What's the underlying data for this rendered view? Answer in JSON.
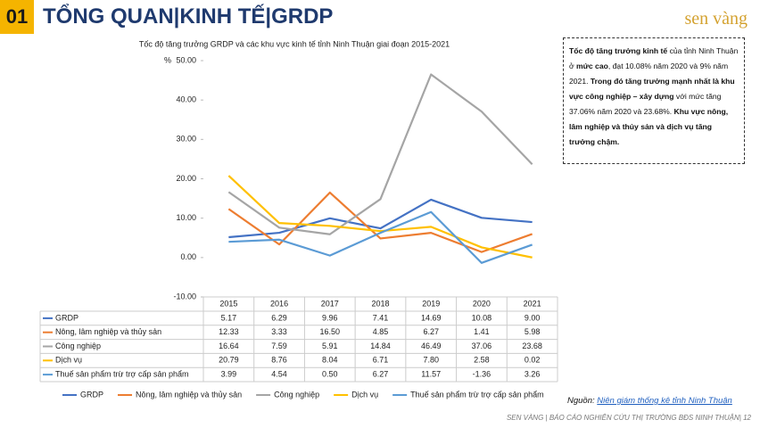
{
  "header": {
    "number": "01",
    "title": "TỔNG QUAN|KINH TẾ|GRDP",
    "logo": "sen vàng"
  },
  "chart_data": {
    "type": "line",
    "title": "Tốc độ tăng trưởng GRDP và các khu vực kinh tế tỉnh Ninh Thuận giai đoạn 2015-2021",
    "y_label": "%",
    "categories": [
      "2015",
      "2016",
      "2017",
      "2018",
      "2019",
      "2020",
      "2021"
    ],
    "ylim": [
      -10,
      50
    ],
    "yticks": [
      {
        "value": -10,
        "label": "-10.00"
      },
      {
        "value": 0,
        "label": "0.00"
      },
      {
        "value": 10,
        "label": "10.00"
      },
      {
        "value": 20,
        "label": "20.00"
      },
      {
        "value": 30,
        "label": "30.00"
      },
      {
        "value": 40,
        "label": "40.00"
      },
      {
        "value": 50,
        "label": "50.00"
      }
    ],
    "grid": false,
    "series": [
      {
        "name": "GRDP",
        "color": "#4472c4",
        "values": [
          5.17,
          6.29,
          9.96,
          7.41,
          14.69,
          10.08,
          9
        ],
        "value_labels": [
          "5.17",
          "6.29",
          "9.96",
          "7.41",
          "14.69",
          "10.08",
          "9.00"
        ]
      },
      {
        "name": "Nông, lâm nghiệp và thủy sản",
        "color": "#ed7d31",
        "values": [
          12.33,
          3.33,
          16.5,
          4.85,
          6.27,
          1.41,
          5.98
        ],
        "value_labels": [
          "12.33",
          "3.33",
          "16.50",
          "4.85",
          "6.27",
          "1.41",
          "5.98"
        ]
      },
      {
        "name": "Công nghiệp",
        "color": "#a5a5a5",
        "values": [
          16.64,
          7.59,
          5.91,
          14.84,
          46.49,
          37.06,
          23.68
        ],
        "value_labels": [
          "16.64",
          "7.59",
          "5.91",
          "14.84",
          "46.49",
          "37.06",
          "23.68"
        ]
      },
      {
        "name": "Dịch vụ",
        "color": "#ffc000",
        "values": [
          20.79,
          8.76,
          8.04,
          6.71,
          7.8,
          2.58,
          0.02
        ],
        "value_labels": [
          "20.79",
          "8.76",
          "8.04",
          "6.71",
          "7.80",
          "2.58",
          "0.02"
        ]
      },
      {
        "name": "Thuế sản phẩm trừ trợ cấp sản phẩm",
        "color": "#5b9bd5",
        "values": [
          3.99,
          4.54,
          0.5,
          6.27,
          11.57,
          -1.36,
          3.26
        ],
        "value_labels": [
          "3.99",
          "4.54",
          "0.50",
          "6.27",
          "11.57",
          "-1.36",
          "3.26"
        ]
      }
    ]
  },
  "note": {
    "segments": [
      "Tốc độ tăng trưởng kinh tế",
      " của tỉnh Ninh Thuận ở ",
      "mức cao",
      ", đạt 10.08% năm 2020 và 9% năm 2021. ",
      "Trong đó tăng trưởng mạnh nhất là khu vực công nghiệp – xây dựng",
      " với mức tăng 37.06% năm 2020 và 23.68%. ",
      "Khu vực nông, lâm nghiệp và thủy sản và dịch vụ tăng trưởng chậm."
    ]
  },
  "source": {
    "prefix": "Nguồn: ",
    "link": "Niên giám thống kê tỉnh Ninh Thuận"
  },
  "footer": "SEN VÀNG | BÁO CÁO NGHIÊN CỨU THỊ TRƯỜNG BĐS NINH THUẬN| 12"
}
